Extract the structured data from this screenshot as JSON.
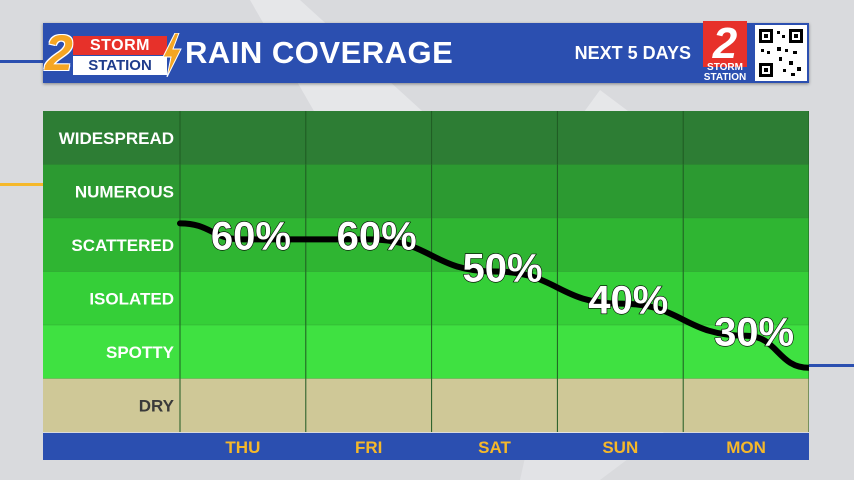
{
  "header": {
    "logo_top": "STORM",
    "logo_bottom": "STATION",
    "logo_number": "2",
    "title": "RAIN COVERAGE",
    "subtitle": "NEXT 5 DAYS",
    "logo_right_number": "2",
    "logo_right_top": "STORM",
    "logo_right_bottom": "STATION"
  },
  "colors": {
    "header_blue": "#2b4fb0",
    "accent_orange": "#f5a623",
    "accent_red": "#e7312a",
    "line": "#000000"
  },
  "chart_data": {
    "type": "line",
    "title": "RAIN COVERAGE",
    "subtitle": "NEXT 5 DAYS",
    "categories": [
      "THU",
      "FRI",
      "SAT",
      "SUN",
      "MON"
    ],
    "y_categories": [
      "DRY",
      "SPOTTY",
      "ISOLATED",
      "SCATTERED",
      "NUMEROUS",
      "WIDESPREAD"
    ],
    "series": [
      {
        "values": [
          60,
          60,
          50,
          40,
          30
        ]
      }
    ],
    "data_labels": [
      "60%",
      "60%",
      "50%",
      "40%",
      "30%"
    ],
    "ylim": [
      0,
      100
    ],
    "grid": true
  }
}
